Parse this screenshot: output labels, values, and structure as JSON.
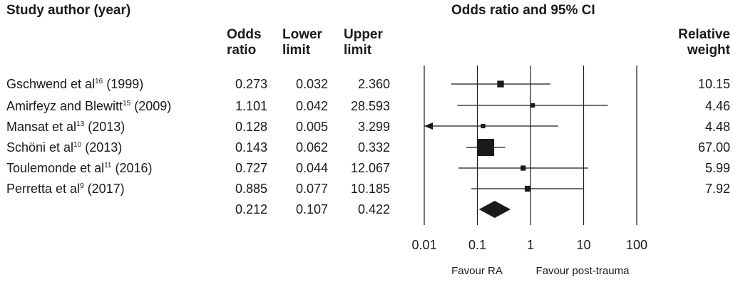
{
  "headers": {
    "study": "Study author (year)",
    "or_top": "Odds",
    "or_bottom": "ratio",
    "lower_top": "Lower",
    "lower_bottom": "limit",
    "upper_top": "Upper",
    "upper_bottom": "limit",
    "plot_title": "Odds ratio and 95% CI",
    "weight_top": "Relative",
    "weight_bottom": "weight"
  },
  "studies": [
    {
      "author": "Gschwend et al",
      "ref": "16",
      "year": "(1999)",
      "or": "0.273",
      "lower": "0.032",
      "upper": "2.360",
      "weight": "10.15"
    },
    {
      "author": "Amirfeyz and Blewitt",
      "ref": "15",
      "year": "(2009)",
      "or": "1.101",
      "lower": "0.042",
      "upper": "28.593",
      "weight": "4.46"
    },
    {
      "author": "Mansat et al",
      "ref": "13",
      "year": "(2013)",
      "or": "0.128",
      "lower": "0.005",
      "upper": "3.299",
      "weight": "4.48"
    },
    {
      "author": "Schöni et al",
      "ref": "10",
      "year": "(2013)",
      "or": "0.143",
      "lower": "0.062",
      "upper": "0.332",
      "weight": "67.00"
    },
    {
      "author": "Toulemonde et al",
      "ref": "11",
      "year": "(2016)",
      "or": "0.727",
      "lower": "0.044",
      "upper": "12.067",
      "weight": "5.99"
    },
    {
      "author": "Perretta et al",
      "ref": "9",
      "year": "(2017)",
      "or": "0.885",
      "lower": "0.077",
      "upper": "10.185",
      "weight": "7.92"
    }
  ],
  "pooled": {
    "or": "0.212",
    "lower": "0.107",
    "upper": "0.422"
  },
  "chart_data": {
    "type": "forest",
    "title": "Odds ratio and 95% CI",
    "x_scale": "log",
    "xlim": [
      0.01,
      100
    ],
    "x_ticks": [
      0.01,
      0.1,
      1,
      10,
      100
    ],
    "x_tick_labels": [
      "0.01",
      "0.1",
      "1",
      "10",
      "100"
    ],
    "gridlines": [
      0.01,
      0.1,
      1,
      10,
      100
    ],
    "favour_left": "Favour RA",
    "favour_right": "Favour post-trauma",
    "categories": [
      "Gschwend et al (1999)",
      "Amirfeyz and Blewitt (2009)",
      "Mansat et al (2013)",
      "Schöni et al (2013)",
      "Toulemonde et al (2016)",
      "Perretta et al (2017)"
    ],
    "series": [
      {
        "values": [
          0.273,
          1.101,
          0.128,
          0.143,
          0.727,
          0.885
        ],
        "lower": [
          0.032,
          0.042,
          0.005,
          0.062,
          0.044,
          0.077
        ],
        "upper": [
          2.36,
          28.593,
          3.299,
          0.332,
          12.067,
          10.185
        ],
        "weights": [
          10.15,
          4.46,
          4.48,
          67.0,
          5.99,
          7.92
        ]
      }
    ],
    "pooled": {
      "value": 0.212,
      "lower": 0.107,
      "upper": 0.422
    }
  }
}
